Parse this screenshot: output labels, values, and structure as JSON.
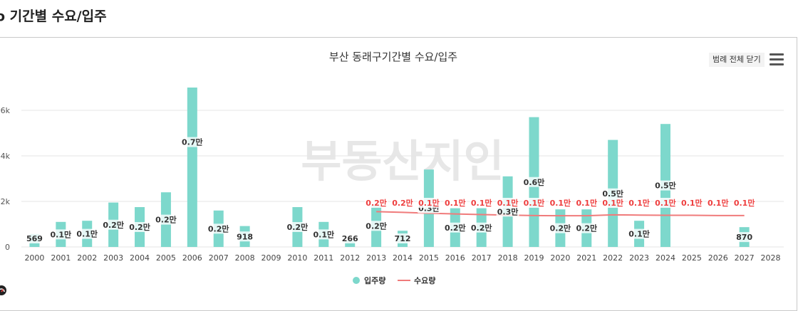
{
  "page": {
    "title": "ο 기간별 수요/입주",
    "legend_toggle_label": "범례 전체 닫기"
  },
  "colors": {
    "supply_bar": "#7dd8cc",
    "demand_line": "#f07b7b",
    "demand_label": "#ee3e3e",
    "grid": "#e6e6e6"
  },
  "watermark": "부동산지인",
  "chart_data": {
    "type": "bar",
    "title": "부산 동래구기간별 수요/입주",
    "xlabel": "",
    "ylabel": "",
    "ylim": [
      0,
      7000
    ],
    "yticks": [
      {
        "value": 0,
        "label": "0"
      },
      {
        "value": 2000,
        "label": "2k"
      },
      {
        "value": 4000,
        "label": "4k"
      },
      {
        "value": 6000,
        "label": "6k"
      }
    ],
    "categories": [
      "2000",
      "2001",
      "2002",
      "2003",
      "2004",
      "2005",
      "2006",
      "2007",
      "2008",
      "2009",
      "2010",
      "2011",
      "2012",
      "2013",
      "2014",
      "2015",
      "2016",
      "2017",
      "2018",
      "2019",
      "2020",
      "2021",
      "2022",
      "2023",
      "2024",
      "2025",
      "2026",
      "2027",
      "2028"
    ],
    "series": [
      {
        "name": "입주량",
        "kind": "bar",
        "values": [
          569,
          1100,
          1150,
          1950,
          1750,
          2400,
          7000,
          1600,
          918,
          null,
          1750,
          1100,
          266,
          1850,
          712,
          3400,
          1700,
          1700,
          3100,
          5700,
          1650,
          1650,
          4700,
          1150,
          5400,
          null,
          null,
          870,
          null
        ],
        "labels": [
          "569",
          "0.1만",
          "0.1만",
          "0.2만",
          "0.2만",
          "0.2만",
          "0.7만",
          "0.2만",
          "918",
          "",
          "0.2만",
          "0.1만",
          "266",
          "0.2만",
          "712",
          "0.3만",
          "0.2만",
          "0.2만",
          "0.3만",
          "0.6만",
          "0.2만",
          "0.2만",
          "0.5만",
          "0.1만",
          "0.5만",
          "",
          "",
          "870",
          ""
        ]
      },
      {
        "name": "수요량",
        "kind": "line",
        "values": [
          null,
          null,
          null,
          null,
          null,
          null,
          null,
          null,
          null,
          null,
          null,
          null,
          null,
          1550,
          1520,
          1480,
          1450,
          1420,
          1400,
          1380,
          1370,
          1370,
          1410,
          1400,
          1390,
          1390,
          1380,
          1380,
          null
        ],
        "labels": [
          "",
          "",
          "",
          "",
          "",
          "",
          "",
          "",
          "",
          "",
          "",
          "",
          "",
          "0.2만",
          "0.2만",
          "0.1만",
          "0.1만",
          "0.1만",
          "0.1만",
          "0.1만",
          "0.1만",
          "0.1만",
          "0.1만",
          "0.1만",
          "0.1만",
          "0.1만",
          "0.1만",
          "0.1만",
          ""
        ]
      }
    ],
    "legend_position": "bottom-center",
    "grid": true
  }
}
